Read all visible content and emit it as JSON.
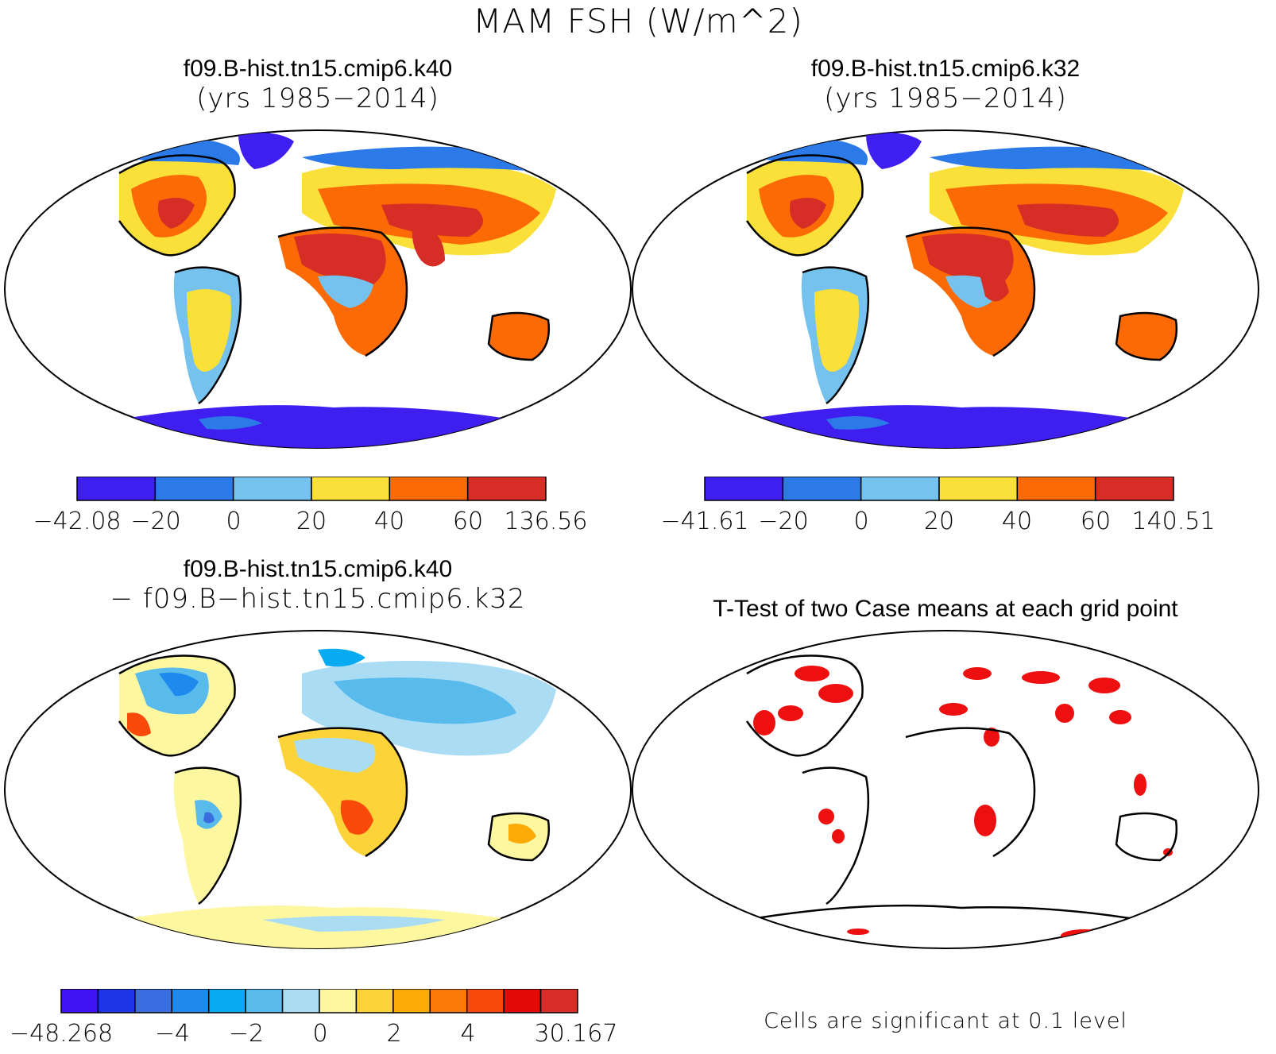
{
  "title": "MAM FSH (W/m^2)",
  "colors": {
    "case_levels": [
      "#3f1ef0",
      "#2c7ae8",
      "#76c2ee",
      "#fbe03a",
      "#fb6a04",
      "#d62d26"
    ],
    "diff_levels": [
      "#3e14f5",
      "#1e35e8",
      "#3a6ee0",
      "#1e8aee",
      "#08aaf2",
      "#58bbec",
      "#aadcf4",
      "#fdf7a0",
      "#fcd43a",
      "#fbaa06",
      "#fb7a0a",
      "#f94a0a",
      "#e20a04",
      "#d62d26"
    ],
    "ttest_significant": "#ee1010",
    "coastline": "#000000"
  },
  "panels": [
    {
      "id": "k40",
      "title": "f09.B-hist.tn15.cmip6.k40",
      "subtitle": "(yrs 1985−2014)",
      "colorbar": {
        "min": "−42.08",
        "ticks": [
          "−20",
          "0",
          "20",
          "40",
          "60"
        ],
        "max": "136.56"
      }
    },
    {
      "id": "k32",
      "title": "f09.B-hist.tn15.cmip6.k32",
      "subtitle": "(yrs 1985−2014)",
      "colorbar": {
        "min": "−41.61",
        "ticks": [
          "−20",
          "0",
          "20",
          "40",
          "60"
        ],
        "max": "140.51"
      }
    },
    {
      "id": "diff",
      "title": "f09.B-hist.tn15.cmip6.k40",
      "subtitle": "− f09.B−hist.tn15.cmip6.k32",
      "colorbar": {
        "min": "−48.268",
        "ticks": [
          "−4",
          "−2",
          "0",
          "2",
          "4"
        ],
        "max": "30.167"
      }
    },
    {
      "id": "ttest",
      "title": "T-Test of two Case means at each grid point",
      "footnote": "Cells are significant at 0.1 level"
    }
  ]
}
